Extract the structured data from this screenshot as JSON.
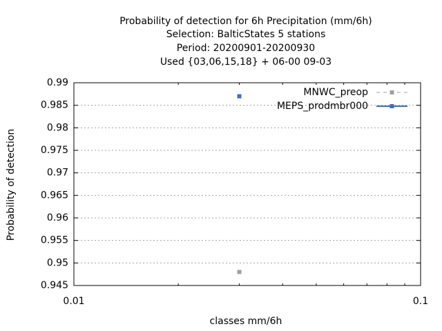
{
  "chart_data": {
    "type": "scatter",
    "title_lines": [
      "Probability of detection  for 6h Precipitation (mm/6h)",
      "Selection: BalticStates      5 stations",
      "Period: 20200901-20200930",
      "Used {03,06,15,18} + 06-00 09-03"
    ],
    "xlabel": "classes mm/6h",
    "ylabel": "Probability of detection",
    "x_scale": "log",
    "xlim": [
      0.01,
      0.1
    ],
    "ylim": [
      0.945,
      0.99
    ],
    "x_ticks": [
      {
        "value": 0.01,
        "label": "0.01"
      },
      {
        "value": 0.1,
        "label": "0.1"
      }
    ],
    "y_ticks": [
      {
        "value": 0.945,
        "label": "0.945"
      },
      {
        "value": 0.95,
        "label": "0.95"
      },
      {
        "value": 0.955,
        "label": "0.955"
      },
      {
        "value": 0.96,
        "label": "0.96"
      },
      {
        "value": 0.965,
        "label": "0.965"
      },
      {
        "value": 0.97,
        "label": "0.97"
      },
      {
        "value": 0.975,
        "label": "0.975"
      },
      {
        "value": 0.98,
        "label": "0.98"
      },
      {
        "value": 0.985,
        "label": "0.985"
      },
      {
        "value": 0.99,
        "label": "0.99"
      }
    ],
    "grid": "horizontal-dotted",
    "legend_position": "top-right",
    "series": [
      {
        "name": "MNWC_preop",
        "color": "#a0a0a0",
        "dashed": true,
        "points": [
          {
            "x": 0.03,
            "y": 0.948
          }
        ]
      },
      {
        "name": "MEPS_prodmbr000",
        "color": "#4169c8",
        "dashed": false,
        "points": [
          {
            "x": 0.03,
            "y": 0.987
          }
        ]
      }
    ]
  }
}
